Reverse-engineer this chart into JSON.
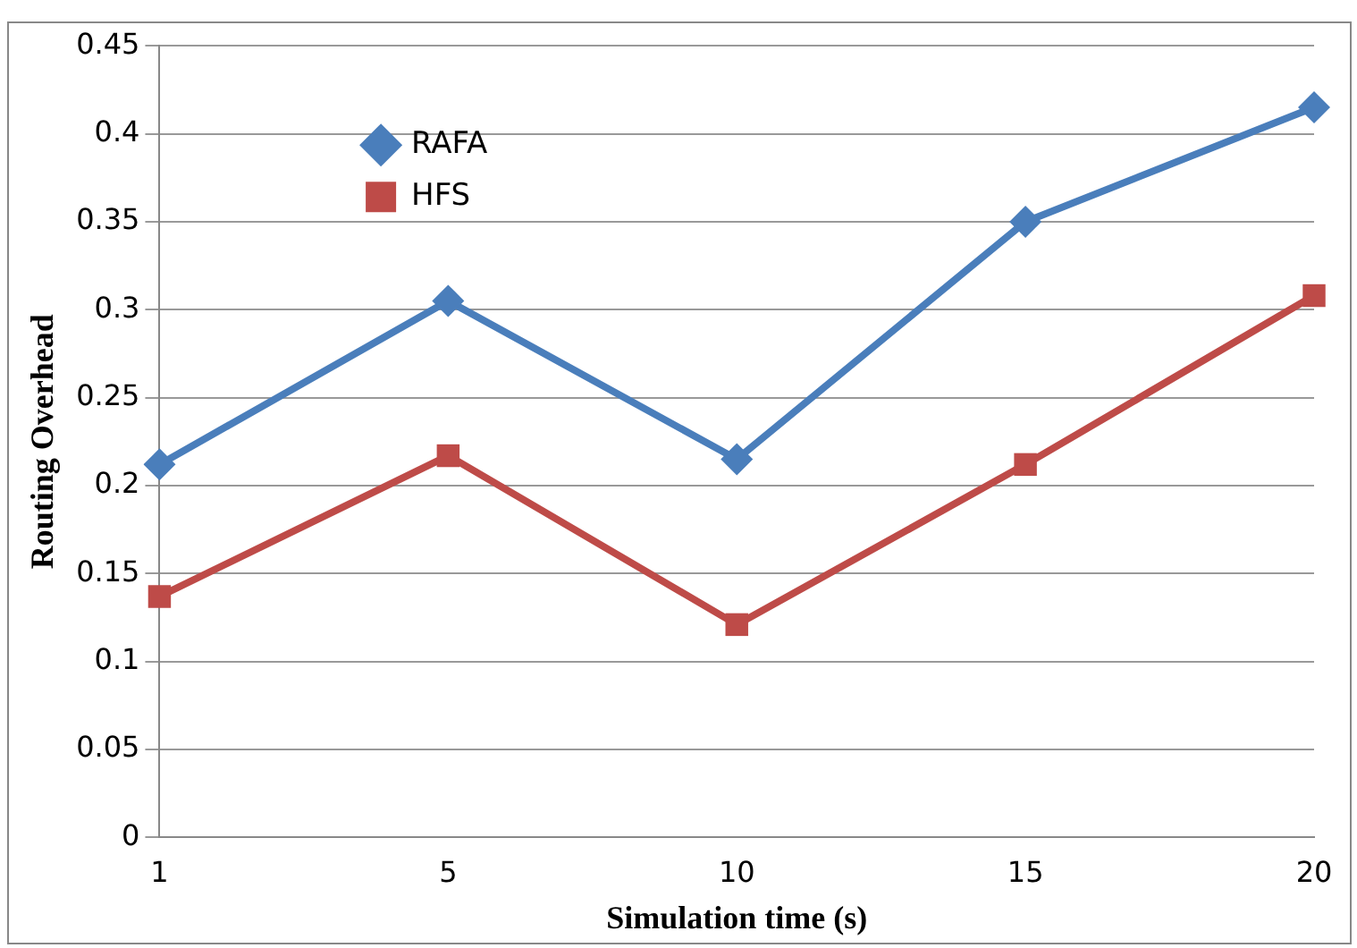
{
  "chart_data": {
    "type": "line",
    "xlabel": "Simulation time (s)",
    "ylabel": "Routing Overhead",
    "categories": [
      "1",
      "5",
      "10",
      "15",
      "20"
    ],
    "series": [
      {
        "name": "RAFA",
        "color": "#4a7ebb",
        "marker": "diamond",
        "values": [
          0.212,
          0.305,
          0.215,
          0.35,
          0.415
        ]
      },
      {
        "name": "HFS",
        "color": "#be4b48",
        "marker": "square",
        "values": [
          0.137,
          0.217,
          0.121,
          0.212,
          0.308
        ]
      }
    ],
    "ylim": [
      0,
      0.45
    ],
    "yticks": [
      0,
      0.05,
      0.1,
      0.15,
      0.2,
      0.25,
      0.3,
      0.35,
      0.4,
      0.45
    ],
    "grid": "y",
    "legend": "top left"
  }
}
